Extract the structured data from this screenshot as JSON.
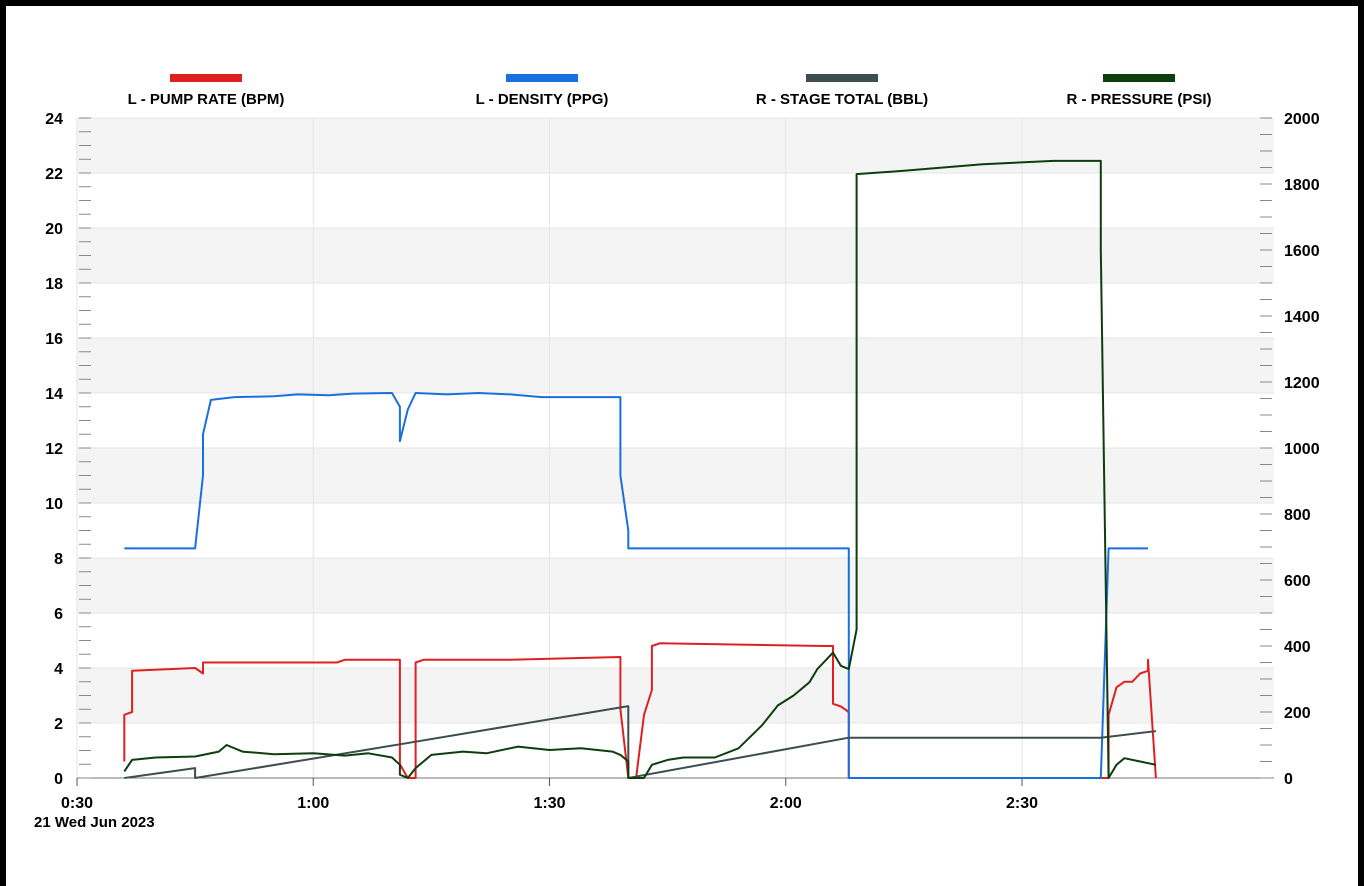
{
  "chart_data": {
    "type": "line",
    "title": "",
    "x_axis": {
      "ticks": [
        "0:30",
        "1:00",
        "1:30",
        "2:00",
        "2:30"
      ],
      "date_label": "21 Wed  Jun 2023",
      "range": [
        "00:30",
        "03:02"
      ]
    },
    "left_axis": {
      "range": [
        0,
        24
      ],
      "ticks": [
        "0",
        "2",
        "4",
        "6",
        "8",
        "10",
        "12",
        "14",
        "16",
        "18",
        "20",
        "22",
        "24"
      ]
    },
    "right_axis": {
      "range": [
        0,
        2000
      ],
      "ticks": [
        "0",
        "200",
        "400",
        "600",
        "800",
        "1000",
        "1200",
        "1400",
        "1600",
        "1800",
        "2000"
      ]
    },
    "grid": true,
    "legend_position": "top",
    "series": [
      {
        "name": "L - PUMP RATE (BPM)",
        "axis": "left",
        "color": "#e02020",
        "points": [
          [
            "00:36",
            0.6
          ],
          [
            "00:36",
            2.3
          ],
          [
            "00:37",
            2.4
          ],
          [
            "00:37",
            3.9
          ],
          [
            "00:45",
            4.0
          ],
          [
            "00:46",
            3.8
          ],
          [
            "00:46",
            4.2
          ],
          [
            "00:55",
            4.2
          ],
          [
            "01:03",
            4.2
          ],
          [
            "01:04",
            4.3
          ],
          [
            "01:11",
            4.3
          ],
          [
            "01:11",
            0.5
          ],
          [
            "01:12",
            0.0
          ],
          [
            "01:13",
            0.0
          ],
          [
            "01:13",
            4.2
          ],
          [
            "01:14",
            4.3
          ],
          [
            "01:25",
            4.3
          ],
          [
            "01:39",
            4.4
          ],
          [
            "01:39",
            2.5
          ],
          [
            "01:40",
            0.0
          ],
          [
            "01:41",
            0.0
          ],
          [
            "01:42",
            2.3
          ],
          [
            "01:43",
            3.2
          ],
          [
            "01:43",
            4.8
          ],
          [
            "01:44",
            4.9
          ],
          [
            "02:05",
            4.8
          ],
          [
            "02:06",
            4.8
          ],
          [
            "02:06",
            2.7
          ],
          [
            "02:07",
            2.6
          ],
          [
            "02:08",
            2.4
          ],
          [
            "02:08",
            0.0
          ],
          [
            "02:40",
            0.0
          ],
          [
            "02:41",
            0.0
          ],
          [
            "02:41",
            2.3
          ],
          [
            "02:42",
            3.3
          ],
          [
            "02:43",
            3.5
          ],
          [
            "02:44",
            3.5
          ],
          [
            "02:45",
            3.8
          ],
          [
            "02:46",
            3.9
          ],
          [
            "02:46",
            4.3
          ],
          [
            "02:47",
            0.0
          ]
        ]
      },
      {
        "name": "L - DENSITY (PPG)",
        "axis": "left",
        "color": "#1a6fe0",
        "points": [
          [
            "00:36",
            8.35
          ],
          [
            "00:45",
            8.35
          ],
          [
            "00:46",
            11.0
          ],
          [
            "00:46",
            12.5
          ],
          [
            "00:47",
            13.75
          ],
          [
            "00:50",
            13.85
          ],
          [
            "00:55",
            13.88
          ],
          [
            "00:58",
            13.95
          ],
          [
            "01:02",
            13.92
          ],
          [
            "01:05",
            13.98
          ],
          [
            "01:10",
            14.0
          ],
          [
            "01:11",
            13.5
          ],
          [
            "01:11",
            12.25
          ],
          [
            "01:12",
            13.4
          ],
          [
            "01:13",
            14.0
          ],
          [
            "01:17",
            13.95
          ],
          [
            "01:21",
            14.0
          ],
          [
            "01:25",
            13.95
          ],
          [
            "01:29",
            13.85
          ],
          [
            "01:39",
            13.85
          ],
          [
            "01:39",
            11.0
          ],
          [
            "01:40",
            9.0
          ],
          [
            "01:40",
            8.35
          ],
          [
            "02:08",
            8.35
          ],
          [
            "02:08",
            0.0
          ],
          [
            "02:40",
            0.0
          ],
          [
            "02:41",
            8.35
          ],
          [
            "02:46",
            8.35
          ]
        ]
      },
      {
        "name": "R - STAGE TOTAL (BBL)",
        "axis": "right",
        "color": "#3d4d50",
        "points": [
          [
            "00:36",
            0
          ],
          [
            "00:45",
            30
          ],
          [
            "00:45",
            0
          ],
          [
            "01:11",
            102
          ],
          [
            "01:40",
            218
          ],
          [
            "01:40",
            0
          ],
          [
            "02:08",
            122
          ],
          [
            "02:40",
            122
          ],
          [
            "02:47",
            142
          ]
        ]
      },
      {
        "name": "R - PRESSURE (PSI)",
        "axis": "right",
        "color": "#0e3d0e",
        "points": [
          [
            "00:36",
            20
          ],
          [
            "00:37",
            55
          ],
          [
            "00:40",
            62
          ],
          [
            "00:45",
            65
          ],
          [
            "00:48",
            80
          ],
          [
            "00:49",
            100
          ],
          [
            "00:51",
            80
          ],
          [
            "00:55",
            72
          ],
          [
            "01:00",
            75
          ],
          [
            "01:04",
            68
          ],
          [
            "01:07",
            75
          ],
          [
            "01:10",
            62
          ],
          [
            "01:11",
            40
          ],
          [
            "01:11",
            10
          ],
          [
            "01:12",
            0
          ],
          [
            "01:13",
            30
          ],
          [
            "01:15",
            70
          ],
          [
            "01:19",
            80
          ],
          [
            "01:22",
            75
          ],
          [
            "01:26",
            95
          ],
          [
            "01:30",
            85
          ],
          [
            "01:34",
            90
          ],
          [
            "01:38",
            80
          ],
          [
            "01:39",
            70
          ],
          [
            "01:40",
            50
          ],
          [
            "01:40",
            0
          ],
          [
            "01:42",
            0
          ],
          [
            "01:43",
            40
          ],
          [
            "01:45",
            55
          ],
          [
            "01:47",
            62
          ],
          [
            "01:51",
            62
          ],
          [
            "01:54",
            90
          ],
          [
            "01:57",
            160
          ],
          [
            "01:59",
            220
          ],
          [
            "02:01",
            250
          ],
          [
            "02:03",
            290
          ],
          [
            "02:04",
            330
          ],
          [
            "02:05",
            355
          ],
          [
            "02:06",
            380
          ],
          [
            "02:07",
            340
          ],
          [
            "02:08",
            330
          ],
          [
            "02:09",
            450
          ],
          [
            "02:09",
            1830
          ],
          [
            "02:15",
            1840
          ],
          [
            "02:25",
            1860
          ],
          [
            "02:34",
            1870
          ],
          [
            "02:40",
            1870
          ],
          [
            "02:40",
            1600
          ],
          [
            "02:41",
            0
          ],
          [
            "02:42",
            40
          ],
          [
            "02:43",
            60
          ],
          [
            "02:45",
            50
          ],
          [
            "02:47",
            40
          ]
        ]
      }
    ]
  }
}
